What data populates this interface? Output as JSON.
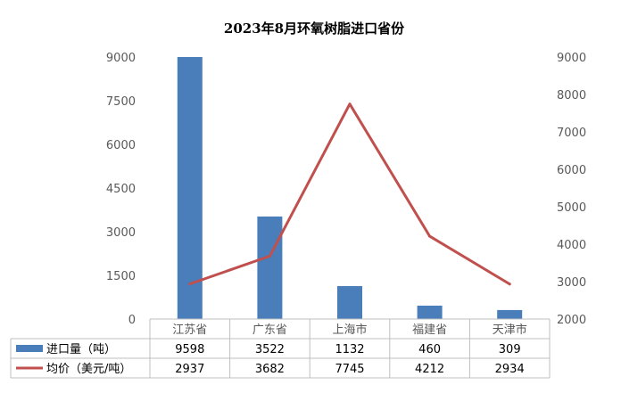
{
  "chart_data": {
    "type": "bar",
    "title": "2023年8月环氧树脂进口省份",
    "categories": [
      "江苏省",
      "广东省",
      "上海市",
      "福建省",
      "天津市"
    ],
    "y_left": {
      "ticks": [
        "0",
        "1500",
        "3000",
        "4500",
        "6000",
        "7500",
        "9000"
      ],
      "ylim": [
        0,
        9000
      ]
    },
    "y_right": {
      "ticks": [
        "2000",
        "3000",
        "4000",
        "5000",
        "6000",
        "7000",
        "8000",
        "9000"
      ],
      "ylim": [
        2000,
        9000
      ]
    },
    "series": [
      {
        "name": "进口量（吨）",
        "type": "bar",
        "axis": "left",
        "color": "#4a7ebb",
        "values": [
          9598,
          3522,
          1132,
          460,
          309
        ],
        "labels": [
          "9598",
          "3522",
          "1132",
          "460",
          "309"
        ]
      },
      {
        "name": "均价（美元/吨）",
        "type": "line",
        "axis": "right",
        "color": "#c0504d",
        "values": [
          2937,
          3682,
          7745,
          4212,
          2934
        ],
        "labels": [
          "2937",
          "3682",
          "7745",
          "4212",
          "2934"
        ]
      }
    ],
    "data_table": true,
    "grid": false
  }
}
